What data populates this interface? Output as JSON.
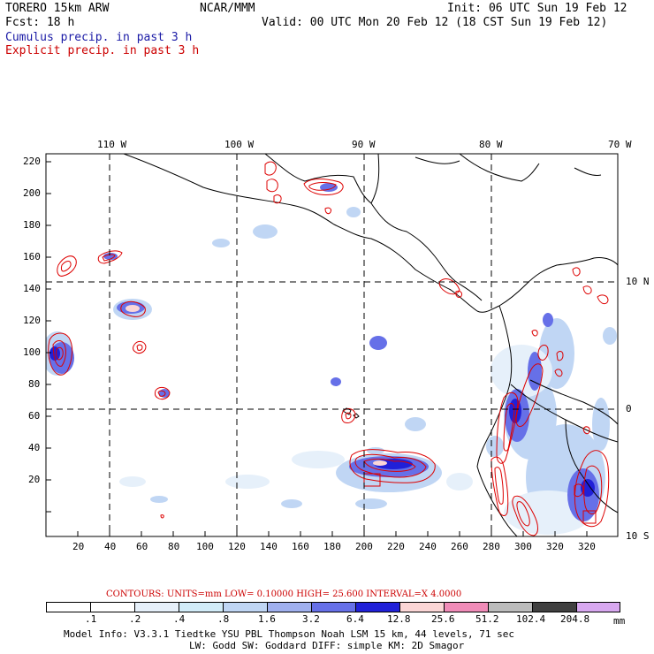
{
  "header": {
    "model": "TORERO  15km ARW",
    "org": "NCAR/MMM",
    "init": "Init: 06 UTC Sun 19 Feb 12",
    "fcst": "Fcst:   18 h",
    "valid": "Valid: 00 UTC Mon 20 Feb 12 (18 CST Sun 19 Feb 12)",
    "cumulus_label": "Cumulus precip. in past 3 h",
    "explicit_label": "Explicit precip. in past 3 h"
  },
  "colors": {
    "cumulus_text": "#1a1aa6",
    "explicit_text": "#cc0000",
    "contour": "#dd0000",
    "grid": "#000000"
  },
  "map": {
    "top_lon_labels": [
      "110 W",
      "100 W",
      "90 W",
      "80 W",
      "70 W"
    ],
    "right_lat_labels": [
      "10 N",
      "0",
      "10 S"
    ],
    "x_ticks": [
      "20",
      "40",
      "60",
      "80",
      "100",
      "120",
      "140",
      "160",
      "180",
      "200",
      "220",
      "240",
      "260",
      "280",
      "300",
      "320"
    ],
    "y_ticks": [
      "220",
      "200",
      "180",
      "160",
      "140",
      "120",
      "100",
      "80",
      "60",
      "40",
      "20"
    ]
  },
  "footer": {
    "contours_line": "CONTOURS:  UNITS=mm  LOW= 0.10000     HIGH=  25.600     INTERVAL=X  4.0000",
    "legend_values": [
      ".1",
      ".2",
      ".4",
      ".8",
      "1.6",
      "3.2",
      "6.4",
      "12.8",
      "25.6",
      "51.2",
      "102.4",
      "204.8"
    ],
    "legend_unit": "mm",
    "legend_colors": [
      "#ffffff",
      "#ffffff",
      "#e6f0fa",
      "#d2ecf8",
      "#c0d6f4",
      "#a0b0ee",
      "#6670e8",
      "#2020d8",
      "#fbd6d6",
      "#f08cb8",
      "#bcbcbc",
      "#404040",
      "#d8a8f0"
    ],
    "model_info_1": "Model Info: V3.3.1    Tiedtke YSU PBL  Thompson     Noah LSM  15 km,   44 levels,   71 sec",
    "model_info_2": "LW: Godd SW: Goddard DIFF: simple KM: 2D Smagor"
  }
}
